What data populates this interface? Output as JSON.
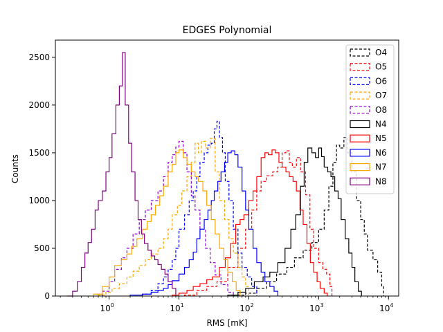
{
  "chart_data": {
    "type": "histogram",
    "title": "EDGES Polynomial",
    "xlabel": "RMS [mK]",
    "ylabel": "Counts",
    "xscale": "log",
    "xlim": [
      0.17,
      14000
    ],
    "ylim": [
      0,
      2680
    ],
    "grid": false,
    "legend_position": "top-right",
    "x_ticks": [
      {
        "value": 1,
        "base": "10",
        "exp": "0"
      },
      {
        "value": 10,
        "base": "10",
        "exp": "1"
      },
      {
        "value": 100,
        "base": "10",
        "exp": "2"
      },
      {
        "value": 1000,
        "base": "10",
        "exp": "3"
      },
      {
        "value": 10000,
        "base": "10",
        "exp": "4"
      }
    ],
    "y_ticks": [
      {
        "value": 0,
        "label": "0"
      },
      {
        "value": 500,
        "label": "500"
      },
      {
        "value": 1000,
        "label": "1000"
      },
      {
        "value": 1500,
        "label": "1500"
      },
      {
        "value": 2000,
        "label": "2000"
      },
      {
        "value": 2500,
        "label": "2500"
      }
    ],
    "series": [
      {
        "name": "O4",
        "color": "#000000",
        "style": "dashed",
        "x": [
          60,
          90,
          130,
          180,
          250,
          350,
          450,
          600,
          800,
          1000,
          1200,
          1400,
          1600,
          1800,
          2000,
          2300,
          2600,
          3000,
          3500,
          4000,
          4500,
          5000,
          6000,
          7000,
          8000,
          8500
        ],
        "y": [
          10,
          30,
          80,
          150,
          230,
          300,
          400,
          480,
          560,
          700,
          900,
          1150,
          1400,
          1580,
          1550,
          1660,
          1500,
          1300,
          1000,
          800,
          650,
          480,
          380,
          250,
          100,
          0
        ]
      },
      {
        "name": "O5",
        "color": "#ff0000",
        "style": "dashed",
        "x": [
          12,
          18,
          25,
          35,
          50,
          70,
          90,
          110,
          130,
          150,
          180,
          220,
          260,
          300,
          340,
          380,
          420,
          480,
          550,
          650,
          750,
          850,
          1000,
          1150,
          1300,
          1450,
          1550
        ],
        "y": [
          10,
          60,
          100,
          150,
          300,
          500,
          700,
          900,
          1100,
          1200,
          1260,
          1300,
          1350,
          1500,
          1520,
          1400,
          1350,
          1450,
          1300,
          1060,
          700,
          500,
          350,
          280,
          230,
          100,
          0
        ]
      },
      {
        "name": "O6",
        "color": "#0000ff",
        "style": "dashed",
        "x": [
          3,
          4,
          5,
          6,
          7,
          8,
          9,
          10,
          12,
          14,
          16,
          18,
          20,
          23,
          26,
          29,
          32,
          35,
          38,
          42,
          46,
          52,
          60,
          70,
          80,
          95,
          110,
          130
        ],
        "y": [
          20,
          60,
          130,
          200,
          280,
          380,
          500,
          700,
          850,
          1000,
          1100,
          1250,
          1400,
          1500,
          1580,
          1600,
          1750,
          1830,
          1660,
          1500,
          1200,
          1000,
          700,
          450,
          300,
          200,
          100,
          0
        ]
      },
      {
        "name": "O7",
        "color": "#ffa500",
        "style": "dashed",
        "x": [
          0.7,
          0.9,
          1.1,
          1.4,
          1.8,
          2.2,
          2.7,
          3.3,
          4,
          5,
          6,
          7,
          8,
          9.5,
          11,
          13,
          15,
          17,
          19,
          21,
          24,
          28,
          33,
          38,
          45,
          52,
          60,
          70,
          80,
          90,
          100
        ],
        "y": [
          10,
          40,
          80,
          130,
          200,
          260,
          320,
          380,
          440,
          500,
          600,
          700,
          850,
          950,
          1100,
          1250,
          1400,
          1600,
          1500,
          1620,
          1550,
          1650,
          1300,
          1000,
          800,
          600,
          450,
          300,
          200,
          100,
          0
        ]
      },
      {
        "name": "O8",
        "color": "#9400d3",
        "style": "dashed",
        "x": [
          0.8,
          1,
          1.2,
          1.5,
          1.8,
          2.2,
          2.7,
          3.3,
          4,
          5,
          6,
          7,
          8,
          9,
          10,
          11.5,
          13,
          15,
          17,
          20,
          24,
          28,
          33,
          40,
          50,
          60
        ],
        "y": [
          50,
          150,
          280,
          400,
          500,
          650,
          800,
          900,
          1000,
          1100,
          1250,
          1400,
          1480,
          1560,
          1620,
          1500,
          1300,
          1050,
          900,
          700,
          500,
          350,
          220,
          120,
          40,
          0
        ]
      },
      {
        "name": "N4",
        "color": "#000000",
        "style": "solid",
        "x": [
          50,
          70,
          90,
          120,
          160,
          200,
          260,
          330,
          400,
          470,
          550,
          620,
          700,
          800,
          900,
          1000,
          1100,
          1200,
          1350,
          1500,
          1700,
          1900,
          2100,
          2400,
          2700,
          3000,
          3300,
          3700,
          4100
        ],
        "y": [
          10,
          40,
          80,
          150,
          200,
          250,
          350,
          500,
          700,
          850,
          1150,
          1400,
          1550,
          1500,
          1450,
          1550,
          1460,
          1350,
          1300,
          1250,
          1100,
          1020,
          800,
          600,
          450,
          300,
          150,
          50,
          0
        ]
      },
      {
        "name": "N5",
        "color": "#ff0000",
        "style": "solid",
        "x": [
          8,
          10,
          13,
          16,
          20,
          25,
          30,
          38,
          46,
          55,
          65,
          75,
          85,
          100,
          115,
          130,
          150,
          170,
          190,
          215,
          240,
          270,
          300,
          340,
          380,
          430,
          480,
          540,
          600,
          680,
          760,
          850,
          950,
          1050,
          1200,
          1330
        ],
        "y": [
          10,
          30,
          60,
          100,
          130,
          170,
          200,
          300,
          400,
          550,
          750,
          800,
          850,
          1000,
          1100,
          1250,
          1450,
          1500,
          1480,
          1530,
          1500,
          1400,
          1350,
          1300,
          1250,
          1200,
          1100,
          900,
          750,
          550,
          350,
          250,
          150,
          80,
          30,
          0
        ]
      },
      {
        "name": "N6",
        "color": "#0000ff",
        "style": "solid",
        "x": [
          2,
          3,
          4,
          5,
          6,
          7,
          8,
          10,
          12,
          14,
          16,
          18,
          20,
          23,
          26,
          29,
          32,
          36,
          40,
          45,
          50,
          56,
          63,
          70,
          80,
          90,
          100,
          115,
          130,
          150,
          170,
          200,
          230,
          260
        ],
        "y": [
          10,
          20,
          40,
          60,
          80,
          120,
          160,
          230,
          300,
          380,
          460,
          600,
          700,
          800,
          900,
          1000,
          1100,
          1200,
          1300,
          1400,
          1500,
          1520,
          1480,
          1350,
          1100,
          900,
          700,
          500,
          350,
          250,
          150,
          100,
          50,
          0
        ]
      },
      {
        "name": "N7",
        "color": "#ffa500",
        "style": "solid",
        "x": [
          0.6,
          0.8,
          1,
          1.2,
          1.5,
          1.8,
          2.1,
          2.5,
          3,
          3.5,
          4,
          4.6,
          5.3,
          6,
          7,
          8,
          9,
          10,
          11.5,
          13,
          15,
          17,
          19,
          22,
          25,
          29,
          33,
          38,
          44,
          50,
          58,
          66,
          75
        ],
        "y": [
          20,
          100,
          200,
          320,
          380,
          440,
          520,
          600,
          700,
          780,
          850,
          950,
          1050,
          1150,
          1300,
          1380,
          1500,
          1530,
          1450,
          1380,
          1300,
          1250,
          1200,
          1100,
          950,
          800,
          650,
          500,
          380,
          250,
          150,
          60,
          0
        ]
      },
      {
        "name": "N8",
        "color": "#800080",
        "style": "solid",
        "x": [
          0.25,
          0.3,
          0.35,
          0.4,
          0.45,
          0.5,
          0.56,
          0.63,
          0.7,
          0.8,
          0.9,
          1,
          1.1,
          1.25,
          1.4,
          1.55,
          1.7,
          1.9,
          2.1,
          2.35,
          2.6,
          2.9,
          3.2,
          3.6,
          4,
          4.5,
          5,
          5.6,
          6.3,
          7,
          8,
          9
        ],
        "y": [
          0,
          50,
          150,
          300,
          450,
          560,
          700,
          900,
          1000,
          1100,
          1300,
          1450,
          1700,
          2000,
          2200,
          2550,
          2000,
          1600,
          1300,
          1000,
          800,
          650,
          550,
          480,
          420,
          380,
          330,
          280,
          230,
          150,
          80,
          0
        ]
      }
    ]
  }
}
